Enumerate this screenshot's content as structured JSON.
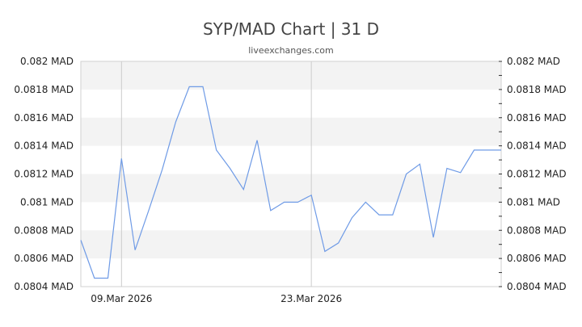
{
  "header": {
    "title": "SYP/MAD Chart | 31 D",
    "subtitle": "liveexchanges.com"
  },
  "colors": {
    "line": "#6f9be6",
    "band": "#f3f3f3",
    "grid": "#cccccc",
    "text": "#222222"
  },
  "chart_data": {
    "type": "line",
    "title": "SYP/MAD Chart | 31 D",
    "subtitle": "liveexchanges.com",
    "xlabel": "",
    "ylabel": "MAD",
    "ylim": [
      0.0804,
      0.082
    ],
    "y_ticks": [
      "0.082 MAD",
      "0.0818 MAD",
      "0.0816 MAD",
      "0.0814 MAD",
      "0.0812 MAD",
      "0.081 MAD",
      "0.0808 MAD",
      "0.0806 MAD",
      "0.0804 MAD"
    ],
    "y_tick_values": [
      0.082,
      0.0818,
      0.0816,
      0.0814,
      0.0812,
      0.081,
      0.0808,
      0.0806,
      0.0804
    ],
    "x_tick_labels": [
      {
        "label": "09.Mar 2026",
        "index": 3
      },
      {
        "label": "23.Mar 2026",
        "index": 17
      }
    ],
    "grid": "horizontal alternating bands; vertical lines at x tick dates",
    "legend": "none",
    "series": [
      {
        "name": "SYP/MAD",
        "x": [
          "06.Mar 2026",
          "07.Mar 2026",
          "08.Mar 2026",
          "09.Mar 2026",
          "10.Mar 2026",
          "11.Mar 2026",
          "12.Mar 2026",
          "13.Mar 2026",
          "14.Mar 2026",
          "15.Mar 2026",
          "16.Mar 2026",
          "17.Mar 2026",
          "18.Mar 2026",
          "19.Mar 2026",
          "20.Mar 2026",
          "21.Mar 2026",
          "22.Mar 2026",
          "23.Mar 2026",
          "24.Mar 2026",
          "25.Mar 2026",
          "26.Mar 2026",
          "27.Mar 2026",
          "28.Mar 2026",
          "29.Mar 2026",
          "30.Mar 2026",
          "31.Mar 2026",
          "01.Apr 2026",
          "02.Apr 2026",
          "03.Apr 2026",
          "04.Apr 2026",
          "05.Apr 2026",
          "06.Apr 2026"
        ],
        "values": [
          0.08073,
          0.08046,
          0.08046,
          0.08131,
          0.08066,
          0.08094,
          0.08123,
          0.08157,
          0.08182,
          0.08182,
          0.08137,
          0.08124,
          0.08109,
          0.08144,
          0.08094,
          0.081,
          0.081,
          0.08105,
          0.08065,
          0.08071,
          0.08089,
          0.081,
          0.08091,
          0.08091,
          0.0812,
          0.08127,
          0.08075,
          0.08124,
          0.08121,
          0.08137,
          0.08137,
          0.08137
        ]
      }
    ]
  }
}
